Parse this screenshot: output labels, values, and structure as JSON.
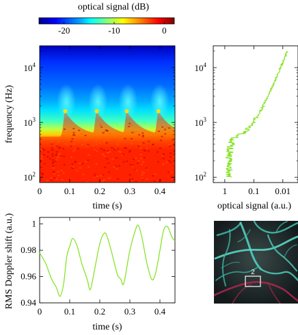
{
  "colorbar": {
    "title": "optical signal (dB)",
    "ticks": [
      "-20",
      "-10",
      "0"
    ],
    "tick_values": [
      -20,
      -10,
      0
    ],
    "range": [
      -25,
      2
    ],
    "colors": [
      "#00008f",
      "#0000ff",
      "#00a0ff",
      "#00ffff",
      "#80ff80",
      "#ffff00",
      "#ff8000",
      "#ff0000",
      "#800000"
    ]
  },
  "spectrogram": {
    "ylabel": "frequency (Hz)",
    "xlabel": "time (s)",
    "xticks": [
      "0",
      "0.1",
      "0.2",
      "0.3",
      "0.4"
    ],
    "yticks": [
      {
        "base": "10",
        "exp": "4"
      },
      {
        "base": "10",
        "exp": "3"
      },
      {
        "base": "10",
        "exp": "2"
      }
    ]
  },
  "spectrum": {
    "xlabel": "optical signal (a.u.)",
    "xticks": [
      "1",
      "0.1",
      "0.01"
    ],
    "yticks": [
      {
        "base": "10",
        "exp": "4"
      },
      {
        "base": "10",
        "exp": "3"
      },
      {
        "base": "10",
        "exp": "2"
      }
    ]
  },
  "doppler": {
    "ylabel": "RMS Doppler shift (a.u.)",
    "xlabel": "time (s)",
    "xticks": [
      "0",
      "0.1",
      "0.2",
      "0.3",
      "0.4"
    ],
    "yticks": [
      "1",
      "0.98",
      "0.96",
      "0.94"
    ]
  },
  "image": {
    "roi_label": "2"
  },
  "chart_data": [
    {
      "type": "heatmap",
      "title": "",
      "xlabel": "time (s)",
      "ylabel": "frequency (Hz)",
      "xlim": [
        0,
        0.45
      ],
      "ylim": [
        80,
        25000
      ],
      "yscale": "log",
      "colorbar_label": "optical signal (dB)",
      "colorbar_range": [
        -25,
        2
      ],
      "pulse_peak_times": [
        0.085,
        0.19,
        0.29,
        0.395
      ],
      "cutoff_frequency_peak": 1600,
      "cutoff_frequency_baseline": 550
    },
    {
      "type": "line",
      "xlabel": "optical signal (a.u.)",
      "ylabel": "frequency (Hz)",
      "xscale": "log",
      "xaxis_reversed": true,
      "xlim": [
        2.5,
        0.003
      ],
      "yscale": "log",
      "ylim": [
        80,
        25000
      ],
      "color": "#7fe21a",
      "points": [
        {
          "y": 100,
          "x": 0.7
        },
        {
          "y": 200,
          "x": 0.72
        },
        {
          "y": 300,
          "x": 0.68
        },
        {
          "y": 500,
          "x": 0.55
        },
        {
          "y": 700,
          "x": 0.18
        },
        {
          "y": 1000,
          "x": 0.1
        },
        {
          "y": 1500,
          "x": 0.07
        },
        {
          "y": 2000,
          "x": 0.05
        },
        {
          "y": 3000,
          "x": 0.032
        },
        {
          "y": 5000,
          "x": 0.021
        },
        {
          "y": 10000,
          "x": 0.012
        },
        {
          "y": 20000,
          "x": 0.007
        }
      ]
    },
    {
      "type": "line",
      "xlabel": "time (s)",
      "ylabel": "RMS Doppler shift (a.u.)",
      "xlim": [
        0,
        0.45
      ],
      "ylim": [
        0.94,
        1.005
      ],
      "color": "#7fe21a",
      "points": [
        {
          "x": 0.0,
          "y": 0.978
        },
        {
          "x": 0.02,
          "y": 0.97
        },
        {
          "x": 0.04,
          "y": 0.958
        },
        {
          "x": 0.055,
          "y": 0.952
        },
        {
          "x": 0.068,
          "y": 0.945
        },
        {
          "x": 0.08,
          "y": 0.955
        },
        {
          "x": 0.09,
          "y": 0.975
        },
        {
          "x": 0.1,
          "y": 0.983
        },
        {
          "x": 0.11,
          "y": 0.989
        },
        {
          "x": 0.125,
          "y": 0.983
        },
        {
          "x": 0.14,
          "y": 0.97
        },
        {
          "x": 0.158,
          "y": 0.958
        },
        {
          "x": 0.168,
          "y": 0.95
        },
        {
          "x": 0.18,
          "y": 0.962
        },
        {
          "x": 0.2,
          "y": 0.985
        },
        {
          "x": 0.215,
          "y": 0.993
        },
        {
          "x": 0.225,
          "y": 0.99
        },
        {
          "x": 0.24,
          "y": 0.978
        },
        {
          "x": 0.258,
          "y": 0.962
        },
        {
          "x": 0.27,
          "y": 0.958
        },
        {
          "x": 0.28,
          "y": 0.955
        },
        {
          "x": 0.3,
          "y": 0.98
        },
        {
          "x": 0.318,
          "y": 0.995
        },
        {
          "x": 0.328,
          "y": 0.999
        },
        {
          "x": 0.34,
          "y": 0.99
        },
        {
          "x": 0.355,
          "y": 0.972
        },
        {
          "x": 0.372,
          "y": 0.958
        },
        {
          "x": 0.385,
          "y": 0.962
        },
        {
          "x": 0.4,
          "y": 0.98
        },
        {
          "x": 0.412,
          "y": 0.995
        },
        {
          "x": 0.425,
          "y": 0.998
        },
        {
          "x": 0.44,
          "y": 0.99
        },
        {
          "x": 0.45,
          "y": 0.987
        }
      ]
    }
  ]
}
